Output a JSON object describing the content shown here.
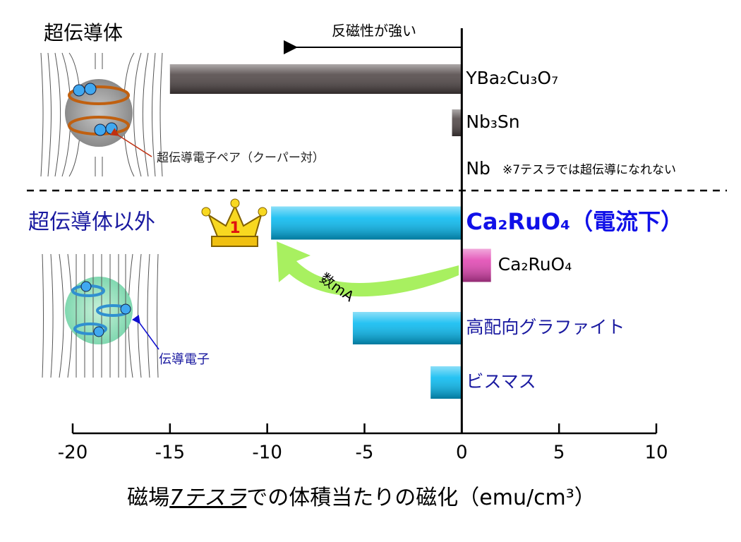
{
  "chart_data": {
    "type": "bar",
    "orientation": "horizontal",
    "categories": [
      "YBa₂Cu₃O₇",
      "Nb₃Sn",
      "Nb",
      "Ca₂RuO₄（電流下）",
      "Ca₂RuO₄",
      "高配向グラファイト",
      "ビスマス"
    ],
    "values": [
      -15.0,
      -0.5,
      0,
      -9.8,
      1.5,
      -5.6,
      -1.6
    ],
    "colors": [
      "#4a4040",
      "#4a4040",
      "#4a4040",
      "#00b8f0",
      "#e040b0",
      "#00b8f0",
      "#00b8f0"
    ],
    "label_colors": [
      "#000000",
      "#000000",
      "#000000",
      "#1010e8",
      "#000000",
      "#1a1aa0",
      "#1a1aa0"
    ],
    "xlim": [
      -20,
      10
    ],
    "xticks": [
      -20,
      -15,
      -10,
      -5,
      0,
      5,
      10
    ],
    "xlabel": [
      "磁場",
      "7テスラ",
      "での体積当たりの磁化（emu/cm³）"
    ],
    "annotations": {
      "superconductor_group": "超伝導体",
      "other_group": "超伝導体以外",
      "diamagnetism_arrow": "反磁性が強い",
      "nb_note": "※7テスラでは超伝導になれない",
      "cooper_pair": "超伝導電子ペア（クーパー対）",
      "conduction_electron": "伝導電子",
      "current_arrow": "数mA",
      "rank": "1"
    }
  }
}
